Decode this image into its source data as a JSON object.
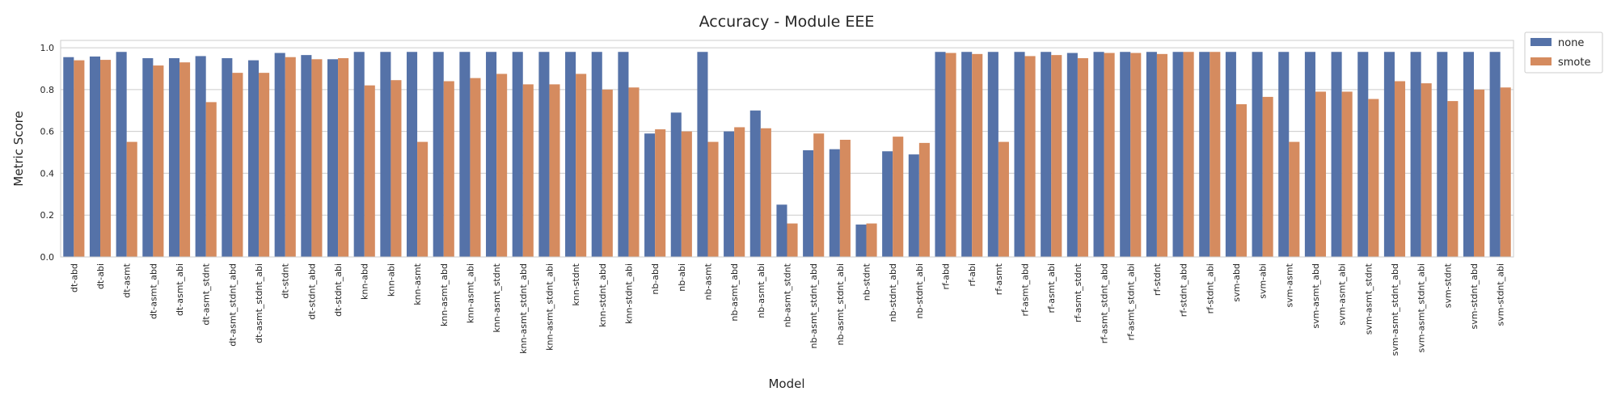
{
  "chart_data": {
    "type": "bar",
    "title": "Accuracy - Module EEE",
    "xlabel": "Model",
    "ylabel": "Metric Score",
    "ylim": [
      0,
      1.0
    ],
    "yticks": [
      "0.0",
      "0.2",
      "0.4",
      "0.6",
      "0.8",
      "1.0"
    ],
    "grid": true,
    "legend_position": "outside-top-right",
    "categories": [
      "dt-abd",
      "dt-abi",
      "dt-asmt",
      "dt-asmt_abd",
      "dt-asmt_abi",
      "dt-asmt_stdnt",
      "dt-asmt_stdnt_abd",
      "dt-asmt_stdnt_abi",
      "dt-stdnt",
      "dt-stdnt_abd",
      "dt-stdnt_abi",
      "knn-abd",
      "knn-abi",
      "knn-asmt",
      "knn-asmt_abd",
      "knn-asmt_abi",
      "knn-asmt_stdnt",
      "knn-asmt_stdnt_abd",
      "knn-asmt_stdnt_abi",
      "knn-stdnt",
      "knn-stdnt_abd",
      "knn-stdnt_abi",
      "nb-abd",
      "nb-abi",
      "nb-asmt",
      "nb-asmt_abd",
      "nb-asmt_abi",
      "nb-asmt_stdnt",
      "nb-asmt_stdnt_abd",
      "nb-asmt_stdnt_abi",
      "nb-stdnt",
      "nb-stdnt_abd",
      "nb-stdnt_abi",
      "rf-abd",
      "rf-abi",
      "rf-asmt",
      "rf-asmt_abd",
      "rf-asmt_abi",
      "rf-asmt_stdnt",
      "rf-asmt_stdnt_abd",
      "rf-asmt_stdnt_abi",
      "rf-stdnt",
      "rf-stdnt_abd",
      "rf-stdnt_abi",
      "svm-abd",
      "svm-abi",
      "svm-asmt",
      "svm-asmt_abd",
      "svm-asmt_abi",
      "svm-asmt_stdnt",
      "svm-asmt_stdnt_abd",
      "svm-asmt_stdnt_abi",
      "svm-stdnt",
      "svm-stdnt_abd",
      "svm-stdnt_abi"
    ],
    "series": [
      {
        "name": "none",
        "color": "#5572a8",
        "values": [
          0.955,
          0.958,
          0.98,
          0.95,
          0.95,
          0.96,
          0.95,
          0.94,
          0.975,
          0.965,
          0.945,
          0.98,
          0.98,
          0.98,
          0.98,
          0.98,
          0.98,
          0.98,
          0.98,
          0.98,
          0.98,
          0.98,
          0.59,
          0.69,
          0.98,
          0.6,
          0.7,
          0.25,
          0.51,
          0.515,
          0.155,
          0.505,
          0.49,
          0.98,
          0.98,
          0.98,
          0.98,
          0.98,
          0.975,
          0.98,
          0.98,
          0.98,
          0.98,
          0.98,
          0.98,
          0.98,
          0.98,
          0.98,
          0.98,
          0.98,
          0.98,
          0.98,
          0.98,
          0.98,
          0.98
        ]
      },
      {
        "name": "smote",
        "color": "#d58b5f",
        "values": [
          0.94,
          0.942,
          0.55,
          0.915,
          0.93,
          0.74,
          0.88,
          0.88,
          0.955,
          0.945,
          0.95,
          0.82,
          0.845,
          0.55,
          0.84,
          0.855,
          0.875,
          0.825,
          0.825,
          0.875,
          0.8,
          0.81,
          0.61,
          0.6,
          0.55,
          0.62,
          0.615,
          0.16,
          0.59,
          0.56,
          0.16,
          0.575,
          0.545,
          0.975,
          0.97,
          0.55,
          0.96,
          0.965,
          0.95,
          0.975,
          0.975,
          0.97,
          0.98,
          0.98,
          0.73,
          0.765,
          0.55,
          0.79,
          0.79,
          0.755,
          0.84,
          0.83,
          0.745,
          0.8,
          0.81
        ]
      }
    ]
  }
}
